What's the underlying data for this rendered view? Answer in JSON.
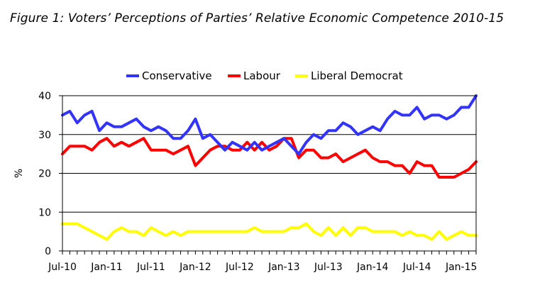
{
  "title": "Figure 1: Voters’ Perceptions of Parties’ Relative Economic Competence 2010-15",
  "chart_data": {
    "type": "line",
    "ylabel": "%",
    "ylim": [
      0,
      40
    ],
    "yticks": [
      0,
      10,
      20,
      30,
      40
    ],
    "xticks": [
      "Jul-10",
      "Jan-11",
      "Jul-11",
      "Jan-12",
      "Jul-12",
      "Jan-13",
      "Jul-13",
      "Jan-14",
      "Jul-14",
      "Jan-15"
    ],
    "x": [
      "Jul-10",
      "Aug-10",
      "Sep-10",
      "Oct-10",
      "Nov-10",
      "Dec-10",
      "Jan-11",
      "Feb-11",
      "Mar-11",
      "Apr-11",
      "May-11",
      "Jun-11",
      "Jul-11",
      "Aug-11",
      "Sep-11",
      "Oct-11",
      "Nov-11",
      "Dec-11",
      "Jan-12",
      "Feb-12",
      "Mar-12",
      "Apr-12",
      "May-12",
      "Jun-12",
      "Jul-12",
      "Aug-12",
      "Sep-12",
      "Oct-12",
      "Nov-12",
      "Dec-12",
      "Jan-13",
      "Feb-13",
      "Mar-13",
      "Apr-13",
      "May-13",
      "Jun-13",
      "Jul-13",
      "Aug-13",
      "Sep-13",
      "Oct-13",
      "Nov-13",
      "Dec-13",
      "Jan-14",
      "Feb-14",
      "Mar-14",
      "Apr-14",
      "May-14",
      "Jun-14",
      "Jul-14",
      "Aug-14",
      "Sep-14",
      "Oct-14",
      "Nov-14",
      "Dec-14",
      "Jan-15",
      "Feb-15",
      "Mar-15"
    ],
    "legend_position": "top",
    "series": [
      {
        "name": "Conservative",
        "color": "#3333ff",
        "values": [
          35,
          36,
          33,
          35,
          36,
          31,
          33,
          32,
          32,
          33,
          34,
          32,
          31,
          32,
          31,
          29,
          29,
          31,
          34,
          29,
          30,
          28,
          26,
          28,
          27,
          26,
          28,
          26,
          27,
          28,
          29,
          27,
          25,
          28,
          30,
          29,
          31,
          31,
          33,
          32,
          30,
          31,
          32,
          31,
          34,
          36,
          35,
          35,
          37,
          34,
          35,
          35,
          34,
          35,
          37,
          37,
          40
        ]
      },
      {
        "name": "Labour",
        "color": "#ff0000",
        "values": [
          25,
          27,
          27,
          27,
          26,
          28,
          29,
          27,
          28,
          27,
          28,
          29,
          26,
          26,
          26,
          25,
          26,
          27,
          22,
          24,
          26,
          27,
          27,
          26,
          26,
          28,
          26,
          28,
          26,
          27,
          29,
          29,
          24,
          26,
          26,
          24,
          24,
          25,
          23,
          24,
          25,
          26,
          24,
          23,
          23,
          22,
          22,
          20,
          23,
          22,
          22,
          19,
          19,
          19,
          20,
          21,
          23
        ]
      },
      {
        "name": "Liberal Democrat",
        "color": "#ffff00",
        "values": [
          7,
          7,
          7,
          6,
          5,
          4,
          3,
          5,
          6,
          5,
          5,
          4,
          6,
          5,
          4,
          5,
          4,
          5,
          5,
          5,
          5,
          5,
          5,
          5,
          5,
          5,
          6,
          5,
          5,
          5,
          5,
          6,
          6,
          7,
          5,
          4,
          6,
          4,
          6,
          4,
          6,
          6,
          5,
          5,
          5,
          5,
          4,
          5,
          4,
          4,
          3,
          5,
          3,
          4,
          5,
          4,
          4
        ]
      }
    ]
  }
}
